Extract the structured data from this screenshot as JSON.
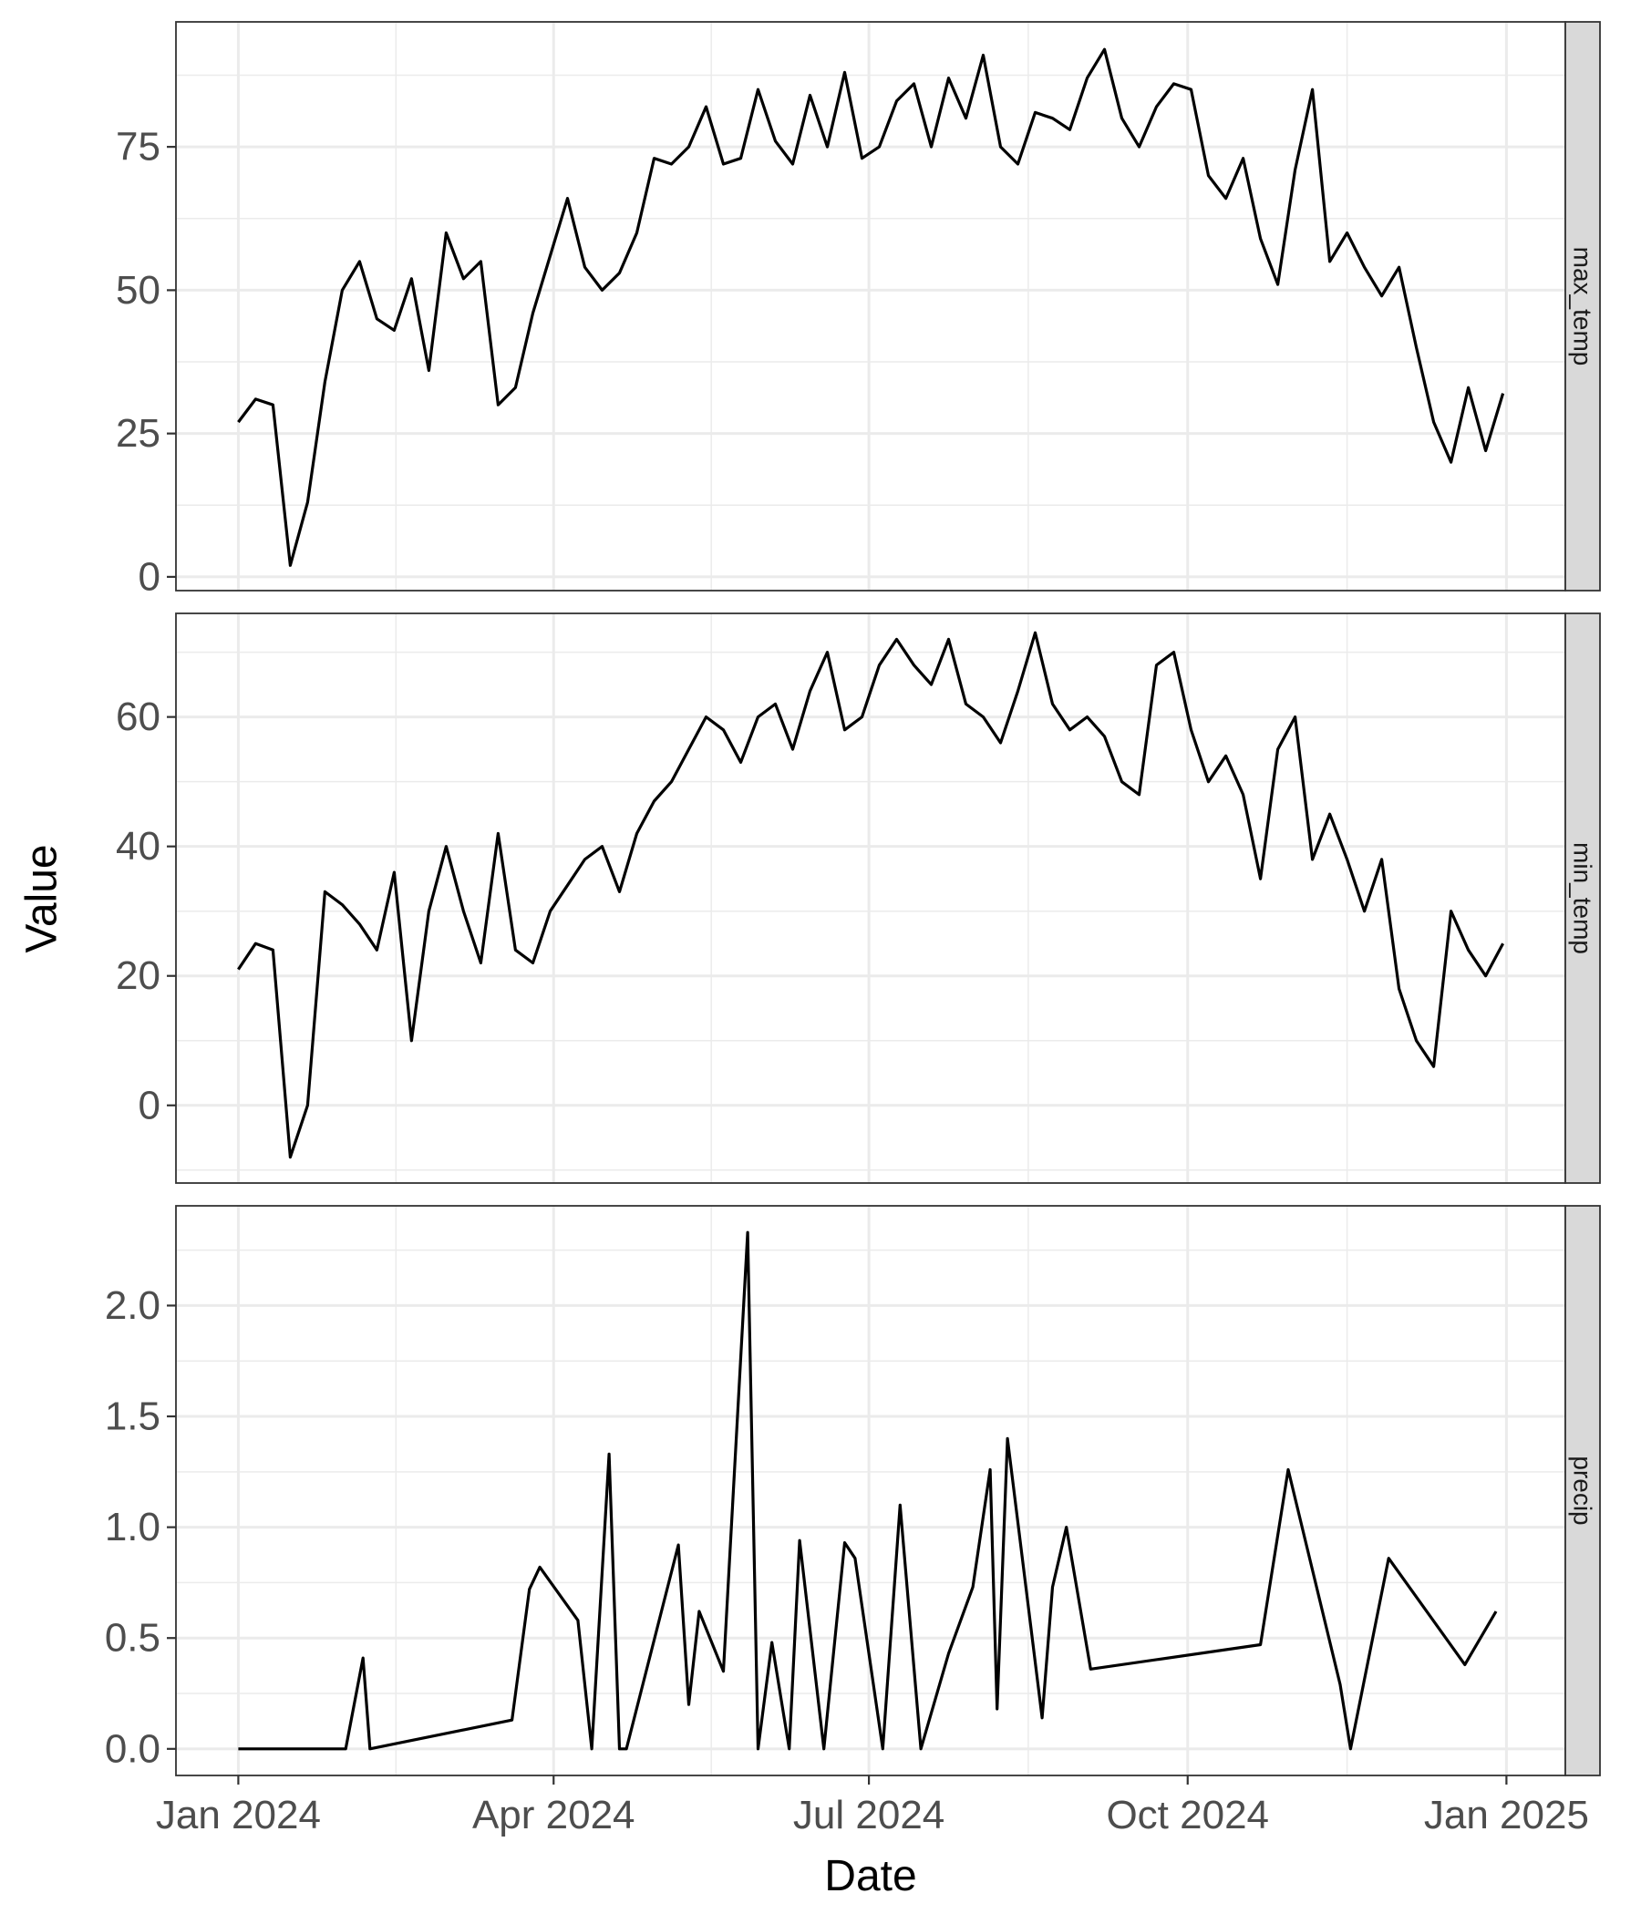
{
  "chart_data": {
    "type": "line",
    "xlabel": "Date",
    "ylabel": "Value",
    "x_range": [
      "2023-12-14",
      "2025-01-18"
    ],
    "x_ticks": [
      {
        "date": "2024-01-01",
        "label": "Jan 2024"
      },
      {
        "date": "2024-04-01",
        "label": "Apr 2024"
      },
      {
        "date": "2024-07-01",
        "label": "Jul 2024"
      },
      {
        "date": "2024-10-01",
        "label": "Oct 2024"
      },
      {
        "date": "2025-01-01",
        "label": "Jan 2025"
      }
    ],
    "facet_strip_position": "right",
    "grid": true,
    "series_color": "#000000",
    "panels": [
      {
        "strip": "max_temp",
        "ylim": [
          -2.4,
          96.8
        ],
        "y_ticks": [
          0,
          25,
          50,
          75
        ],
        "y_tick_labels": [
          "0",
          "25",
          "50",
          "75"
        ],
        "x": [
          "2024-01-01",
          "2024-01-06",
          "2024-01-11",
          "2024-01-16",
          "2024-01-21",
          "2024-01-26",
          "2024-01-31",
          "2024-02-05",
          "2024-02-10",
          "2024-02-15",
          "2024-02-20",
          "2024-02-25",
          "2024-03-01",
          "2024-03-06",
          "2024-03-11",
          "2024-03-16",
          "2024-03-21",
          "2024-03-26",
          "2024-03-31",
          "2024-04-05",
          "2024-04-10",
          "2024-04-15",
          "2024-04-20",
          "2024-04-25",
          "2024-04-30",
          "2024-05-05",
          "2024-05-10",
          "2024-05-15",
          "2024-05-20",
          "2024-05-25",
          "2024-05-30",
          "2024-06-04",
          "2024-06-09",
          "2024-06-14",
          "2024-06-19",
          "2024-06-24",
          "2024-06-29",
          "2024-07-04",
          "2024-07-09",
          "2024-07-14",
          "2024-07-19",
          "2024-07-24",
          "2024-07-29",
          "2024-08-03",
          "2024-08-08",
          "2024-08-13",
          "2024-08-18",
          "2024-08-23",
          "2024-08-28",
          "2024-09-02",
          "2024-09-07",
          "2024-09-12",
          "2024-09-17",
          "2024-09-22",
          "2024-09-27",
          "2024-10-02",
          "2024-10-07",
          "2024-10-12",
          "2024-10-17",
          "2024-10-22",
          "2024-10-27",
          "2024-11-01",
          "2024-11-06",
          "2024-11-11",
          "2024-11-16",
          "2024-11-21",
          "2024-11-26",
          "2024-12-01",
          "2024-12-06",
          "2024-12-11",
          "2024-12-16",
          "2024-12-21",
          "2024-12-26",
          "2024-12-31"
        ],
        "values": [
          27,
          31,
          30,
          2,
          13,
          34,
          50,
          55,
          45,
          43,
          52,
          36,
          60,
          52,
          55,
          30,
          33,
          46,
          56,
          66,
          54,
          50,
          53,
          60,
          73,
          72,
          75,
          82,
          72,
          73,
          85,
          76,
          72,
          84,
          75,
          88,
          73,
          75,
          83,
          86,
          75,
          87,
          80,
          91,
          75,
          72,
          81,
          80,
          78,
          87,
          92,
          80,
          75,
          82,
          86,
          85,
          70,
          66,
          73,
          59,
          51,
          71,
          85,
          55,
          60,
          54,
          49,
          54,
          40,
          27,
          20,
          33,
          22,
          32
        ]
      },
      {
        "strip": "min_temp",
        "ylim": [
          -12,
          76
        ],
        "y_ticks": [
          0,
          20,
          40,
          60
        ],
        "y_tick_labels": [
          "0",
          "20",
          "40",
          "60"
        ],
        "x": [
          "2024-01-01",
          "2024-01-06",
          "2024-01-11",
          "2024-01-16",
          "2024-01-21",
          "2024-01-26",
          "2024-01-31",
          "2024-02-05",
          "2024-02-10",
          "2024-02-15",
          "2024-02-20",
          "2024-02-25",
          "2024-03-01",
          "2024-03-06",
          "2024-03-11",
          "2024-03-16",
          "2024-03-21",
          "2024-03-26",
          "2024-03-31",
          "2024-04-05",
          "2024-04-10",
          "2024-04-15",
          "2024-04-20",
          "2024-04-25",
          "2024-04-30",
          "2024-05-05",
          "2024-05-10",
          "2024-05-15",
          "2024-05-20",
          "2024-05-25",
          "2024-05-30",
          "2024-06-04",
          "2024-06-09",
          "2024-06-14",
          "2024-06-19",
          "2024-06-24",
          "2024-06-29",
          "2024-07-04",
          "2024-07-09",
          "2024-07-14",
          "2024-07-19",
          "2024-07-24",
          "2024-07-29",
          "2024-08-03",
          "2024-08-08",
          "2024-08-13",
          "2024-08-18",
          "2024-08-23",
          "2024-08-28",
          "2024-09-02",
          "2024-09-07",
          "2024-09-12",
          "2024-09-17",
          "2024-09-22",
          "2024-09-27",
          "2024-10-02",
          "2024-10-07",
          "2024-10-12",
          "2024-10-17",
          "2024-10-22",
          "2024-10-27",
          "2024-11-01",
          "2024-11-06",
          "2024-11-11",
          "2024-11-16",
          "2024-11-21",
          "2024-11-26",
          "2024-12-01",
          "2024-12-06",
          "2024-12-11",
          "2024-12-16",
          "2024-12-21",
          "2024-12-26",
          "2024-12-31"
        ],
        "values": [
          21,
          25,
          24,
          -8,
          0,
          33,
          31,
          28,
          24,
          36,
          10,
          30,
          40,
          30,
          22,
          42,
          24,
          22,
          30,
          34,
          38,
          40,
          33,
          42,
          47,
          50,
          55,
          60,
          58,
          53,
          60,
          62,
          55,
          64,
          70,
          58,
          60,
          68,
          72,
          68,
          65,
          72,
          62,
          60,
          56,
          64,
          73,
          62,
          58,
          60,
          57,
          50,
          48,
          68,
          70,
          58,
          50,
          54,
          48,
          35,
          55,
          60,
          38,
          45,
          38,
          30,
          38,
          18,
          10,
          6,
          30,
          24,
          20,
          25
        ]
      },
      {
        "strip": "precip",
        "ylim": [
          -0.12,
          2.45
        ],
        "y_ticks": [
          0.0,
          0.5,
          1.0,
          1.5,
          2.0
        ],
        "y_tick_labels": [
          "0.0",
          "0.5",
          "1.0",
          "1.5",
          "2.0"
        ],
        "x": [
          "2024-01-01",
          "2024-02-01",
          "2024-02-06",
          "2024-02-08",
          "2024-03-20",
          "2024-03-25",
          "2024-03-28",
          "2024-04-08",
          "2024-04-12",
          "2024-04-17",
          "2024-04-20",
          "2024-04-22",
          "2024-05-07",
          "2024-05-10",
          "2024-05-13",
          "2024-05-20",
          "2024-05-27",
          "2024-05-30",
          "2024-06-03",
          "2024-06-08",
          "2024-06-11",
          "2024-06-18",
          "2024-06-24",
          "2024-06-27",
          "2024-07-05",
          "2024-07-10",
          "2024-07-16",
          "2024-07-24",
          "2024-07-31",
          "2024-08-05",
          "2024-08-07",
          "2024-08-10",
          "2024-08-20",
          "2024-08-23",
          "2024-08-27",
          "2024-09-03",
          "2024-10-22",
          "2024-10-30",
          "2024-11-14",
          "2024-11-17",
          "2024-11-28",
          "2024-12-20",
          "2024-12-29"
        ],
        "values": [
          0,
          0,
          0.41,
          0,
          0.13,
          0.72,
          0.82,
          0.58,
          0,
          1.33,
          0,
          0,
          0.92,
          0.2,
          0.62,
          0.35,
          2.33,
          0,
          0.48,
          0,
          0.94,
          0,
          0.93,
          0.86,
          0,
          1.1,
          0,
          0.43,
          0.73,
          1.26,
          0.18,
          1.4,
          0.14,
          0.73,
          1.0,
          0.36,
          0.47,
          1.26,
          0.29,
          0,
          0.86,
          0.38,
          0.62
        ]
      }
    ]
  }
}
